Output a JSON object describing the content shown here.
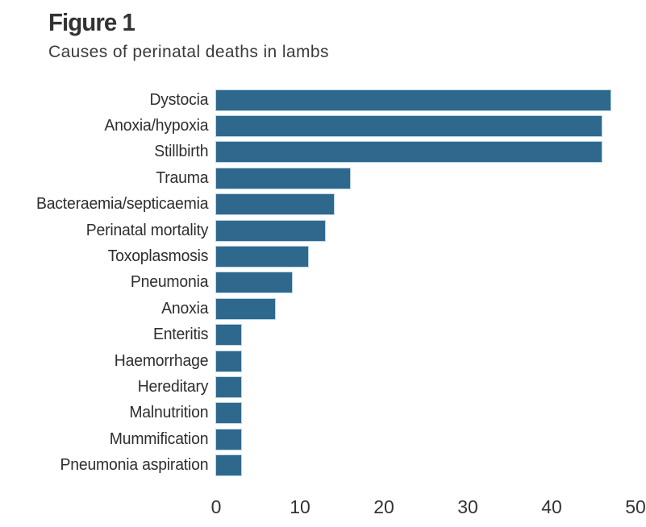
{
  "header": {
    "figure_label": "Figure 1",
    "title": "Causes of perinatal deaths in lambs"
  },
  "chart_data": {
    "type": "bar",
    "orientation": "horizontal",
    "title": "Causes of perinatal deaths in lambs",
    "categories": [
      "Dystocia",
      "Anoxia/hypoxia",
      "Stillbirth",
      "Trauma",
      "Bacteraemia/septicaemia",
      "Perinatal mortality",
      "Toxoplasmosis",
      "Pneumonia",
      "Anoxia",
      "Enteritis",
      "Haemorrhage",
      "Hereditary",
      "Malnutrition",
      "Mummification",
      "Pneumonia aspiration"
    ],
    "values": [
      47,
      46,
      46,
      16,
      14,
      13,
      11,
      9,
      7,
      3,
      3,
      3,
      3,
      3,
      3
    ],
    "xlabel": "",
    "ylabel": "",
    "xlim": [
      0,
      50
    ],
    "xticks": [
      0,
      10,
      20,
      30,
      40,
      50
    ],
    "bar_color": "#2f688d",
    "grid": false,
    "legend": false
  }
}
